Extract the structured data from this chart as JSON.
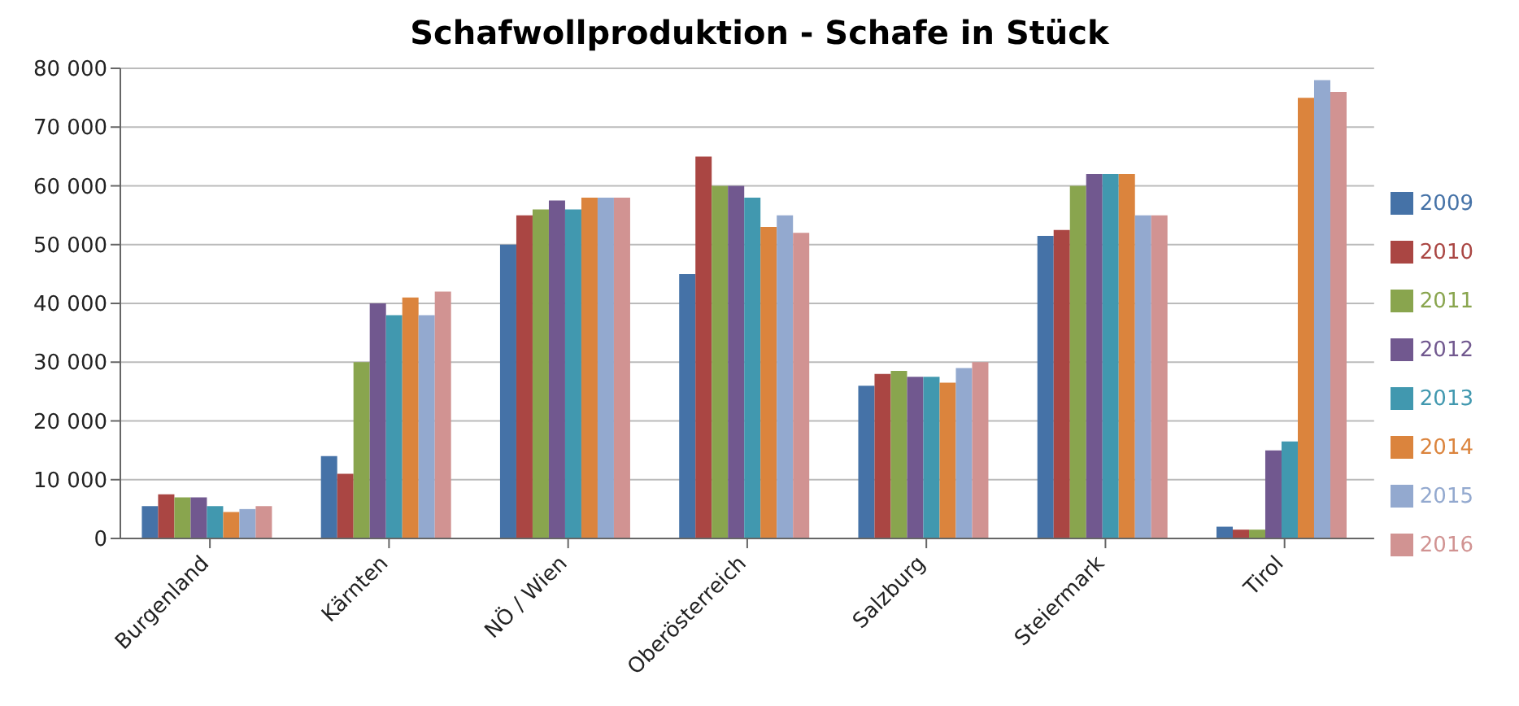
{
  "chart_data": {
    "type": "bar",
    "title": "Schafwollproduktion - Schafe in Stück",
    "categories": [
      "Burgenland",
      "Kärnten",
      "NÖ / Wien",
      "Oberösterreich",
      "Salzburg",
      "Steiermark",
      "Tirol"
    ],
    "series": [
      {
        "name": "2009",
        "color": "#4572a7",
        "values": [
          5500,
          14000,
          50000,
          45000,
          26000,
          51500,
          2000
        ]
      },
      {
        "name": "2010",
        "color": "#aa4643",
        "values": [
          7500,
          11000,
          55000,
          65000,
          28000,
          52500,
          1500
        ]
      },
      {
        "name": "2011",
        "color": "#89a54e",
        "values": [
          7000,
          30000,
          56000,
          60000,
          28500,
          60000,
          1500
        ]
      },
      {
        "name": "2012",
        "color": "#71588f",
        "values": [
          7000,
          40000,
          57500,
          60000,
          27500,
          62000,
          15000
        ]
      },
      {
        "name": "2013",
        "color": "#4198af",
        "values": [
          5500,
          38000,
          56000,
          58000,
          27500,
          62000,
          16500
        ]
      },
      {
        "name": "2014",
        "color": "#db843d",
        "values": [
          4500,
          41000,
          58000,
          53000,
          26500,
          62000,
          75000
        ]
      },
      {
        "name": "2015",
        "color": "#93a9cf",
        "values": [
          5000,
          38000,
          58000,
          55000,
          29000,
          55000,
          78000
        ]
      },
      {
        "name": "2016",
        "color": "#d19392",
        "values": [
          5500,
          42000,
          58000,
          52000,
          30000,
          55000,
          76000
        ]
      }
    ],
    "ylim": [
      0,
      80000
    ],
    "yticks": [
      0,
      {
        "value": 10000,
        "label": "10 000"
      },
      {
        "value": 20000,
        "label": "20 000"
      },
      {
        "value": 30000,
        "label": "30 000"
      },
      {
        "value": 40000,
        "label": "40 000"
      },
      {
        "value": 50000,
        "label": "50 000"
      },
      {
        "value": 60000,
        "label": "60 000"
      },
      {
        "value": 70000,
        "label": "70 000"
      },
      {
        "value": 80000,
        "label": "80 000"
      }
    ],
    "grid": "y",
    "legend": "right"
  }
}
